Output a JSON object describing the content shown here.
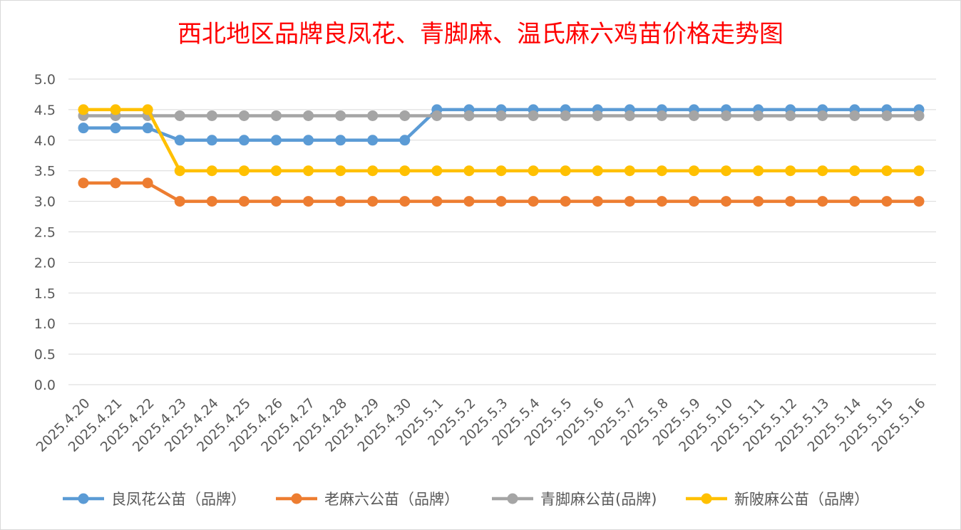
{
  "chart_data": {
    "type": "line",
    "title": "西北地区品牌良凤花、青脚麻、温氏麻六鸡苗价格走势图",
    "xlabel": "",
    "ylabel": "",
    "ylim": [
      0,
      5
    ],
    "yticks": [
      "0.0",
      "0.5",
      "1.0",
      "1.5",
      "2.0",
      "2.5",
      "3.0",
      "3.5",
      "4.0",
      "4.5",
      "5.0"
    ],
    "grid": true,
    "legend_position": "bottom",
    "categories": [
      "2025.4.20",
      "2025.4.21",
      "2025.4.22",
      "2025.4.23",
      "2025.4.24",
      "2025.4.25",
      "2025.4.26",
      "2025.4.27",
      "2025.4.28",
      "2025.4.29",
      "2025.4.30",
      "2025.5.1",
      "2025.5.2",
      "2025.5.3",
      "2025.5.4",
      "2025.5.5",
      "2025.5.6",
      "2025.5.7",
      "2025.5.8",
      "2025.5.9",
      "2025.5.10",
      "2025.5.11",
      "2025.5.12",
      "2025.5.13",
      "2025.5.14",
      "2025.5.15",
      "2025.5.16"
    ],
    "series": [
      {
        "name": "良凤花公苗（品牌）",
        "color": "#5b9bd5",
        "values": [
          4.2,
          4.2,
          4.2,
          4.0,
          4.0,
          4.0,
          4.0,
          4.0,
          4.0,
          4.0,
          4.0,
          4.5,
          4.5,
          4.5,
          4.5,
          4.5,
          4.5,
          4.5,
          4.5,
          4.5,
          4.5,
          4.5,
          4.5,
          4.5,
          4.5,
          4.5,
          4.5
        ]
      },
      {
        "name": "老麻六公苗（品牌）",
        "color": "#ed7d31",
        "values": [
          3.3,
          3.3,
          3.3,
          3.0,
          3.0,
          3.0,
          3.0,
          3.0,
          3.0,
          3.0,
          3.0,
          3.0,
          3.0,
          3.0,
          3.0,
          3.0,
          3.0,
          3.0,
          3.0,
          3.0,
          3.0,
          3.0,
          3.0,
          3.0,
          3.0,
          3.0,
          3.0
        ]
      },
      {
        "name": "青脚麻公苗(品牌)",
        "color": "#a5a5a5",
        "values": [
          4.4,
          4.4,
          4.4,
          4.4,
          4.4,
          4.4,
          4.4,
          4.4,
          4.4,
          4.4,
          4.4,
          4.4,
          4.4,
          4.4,
          4.4,
          4.4,
          4.4,
          4.4,
          4.4,
          4.4,
          4.4,
          4.4,
          4.4,
          4.4,
          4.4,
          4.4,
          4.4
        ]
      },
      {
        "name": "新陂麻公苗（品牌）",
        "color": "#ffc000",
        "values": [
          4.5,
          4.5,
          4.5,
          3.5,
          3.5,
          3.5,
          3.5,
          3.5,
          3.5,
          3.5,
          3.5,
          3.5,
          3.5,
          3.5,
          3.5,
          3.5,
          3.5,
          3.5,
          3.5,
          3.5,
          3.5,
          3.5,
          3.5,
          3.5,
          3.5,
          3.5,
          3.5
        ]
      }
    ]
  }
}
